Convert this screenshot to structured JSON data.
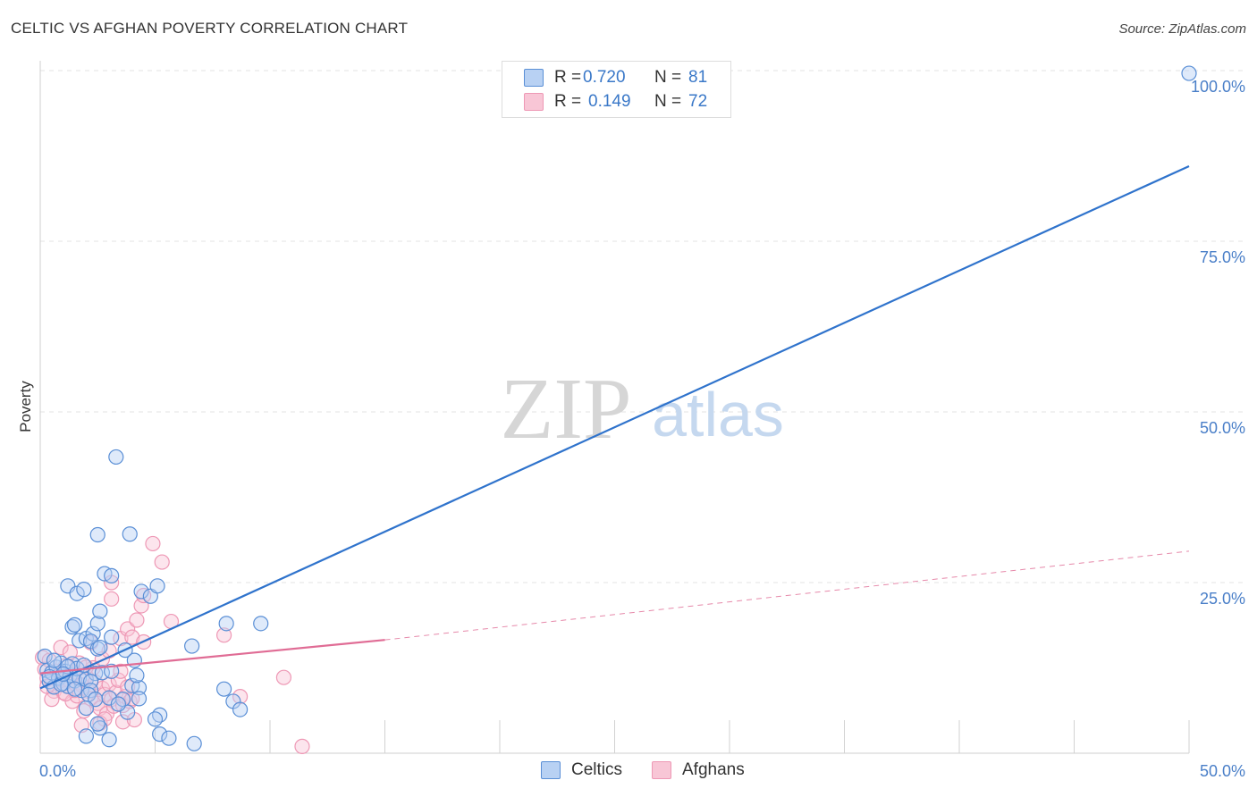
{
  "title": "CELTIC VS AFGHAN POVERTY CORRELATION CHART",
  "source": "Source: ZipAtlas.com",
  "legend": {
    "rows": [
      {
        "r_label": "R =",
        "r_value": "0.720",
        "n_label": "N =",
        "n_value": "81"
      },
      {
        "r_label": "R =",
        "r_value": "0.149",
        "n_label": "N =",
        "n_value": "72"
      }
    ]
  },
  "bottom_legend": {
    "celtics": "Celtics",
    "afghans": "Afghans"
  },
  "colors": {
    "blue": "#2f73cc",
    "blue_fill": "#b8d1f3",
    "blue_stroke": "#5a8fd6",
    "pink": "#e06c95",
    "pink_fill": "#f8c6d6",
    "pink_stroke": "#ee98b5",
    "axis_text": "#4a7fc8",
    "grid": "#e3e3e3"
  },
  "chart_data": {
    "type": "scatter",
    "title": "CELTIC VS AFGHAN POVERTY CORRELATION CHART",
    "xlabel": "",
    "ylabel": "Poverty",
    "xlim": [
      0,
      50
    ],
    "ylim": [
      0,
      100
    ],
    "x_tick_labels": [
      "0.0%",
      "50.0%"
    ],
    "y_tick_labels": [
      "25.0%",
      "50.0%",
      "75.0%",
      "100.0%"
    ],
    "y_ticks": [
      25,
      50,
      75,
      100
    ],
    "watermark": {
      "zip": "ZIP",
      "atlas": "atlas"
    },
    "series": [
      {
        "name": "Celtics",
        "R": 0.72,
        "N": 81,
        "trend": {
          "x": [
            0,
            50
          ],
          "y": [
            9.5,
            86.0
          ],
          "style": "solid"
        },
        "points": [
          [
            0.2,
            14.2
          ],
          [
            0.3,
            12.1
          ],
          [
            0.4,
            10.5
          ],
          [
            0.5,
            11.8
          ],
          [
            0.6,
            9.7
          ],
          [
            0.7,
            12.6
          ],
          [
            0.8,
            11.0
          ],
          [
            0.9,
            13.2
          ],
          [
            1.0,
            10.2
          ],
          [
            1.1,
            12.0
          ],
          [
            1.2,
            9.8
          ],
          [
            1.3,
            11.4
          ],
          [
            1.4,
            13.1
          ],
          [
            1.5,
            10.6
          ],
          [
            1.6,
            12.4
          ],
          [
            1.7,
            11.0
          ],
          [
            1.8,
            9.2
          ],
          [
            1.9,
            12.9
          ],
          [
            2.0,
            10.8
          ],
          [
            0.4,
            11.2
          ],
          [
            0.6,
            13.6
          ],
          [
            0.9,
            10.1
          ],
          [
            1.2,
            12.7
          ],
          [
            1.5,
            9.4
          ],
          [
            1.2,
            24.5
          ],
          [
            1.6,
            23.4
          ],
          [
            1.9,
            24.0
          ],
          [
            1.4,
            18.5
          ],
          [
            1.5,
            18.8
          ],
          [
            1.7,
            16.5
          ],
          [
            2.0,
            16.8
          ],
          [
            2.3,
            17.5
          ],
          [
            2.2,
            16.4
          ],
          [
            2.5,
            19.0
          ],
          [
            2.5,
            15.3
          ],
          [
            2.6,
            15.5
          ],
          [
            2.4,
            11.7
          ],
          [
            2.2,
            10.5
          ],
          [
            2.2,
            9.2
          ],
          [
            2.1,
            8.6
          ],
          [
            2.4,
            7.9
          ],
          [
            2.7,
            11.8
          ],
          [
            2.6,
            20.8
          ],
          [
            2.8,
            26.3
          ],
          [
            3.1,
            26.0
          ],
          [
            2.5,
            32.0
          ],
          [
            3.9,
            32.1
          ],
          [
            3.3,
            43.4
          ],
          [
            3.1,
            17.0
          ],
          [
            3.1,
            12.0
          ],
          [
            3.7,
            15.1
          ],
          [
            4.1,
            13.6
          ],
          [
            4.0,
            9.9
          ],
          [
            4.3,
            9.6
          ],
          [
            3.6,
            7.9
          ],
          [
            4.3,
            8.0
          ],
          [
            3.8,
            6.0
          ],
          [
            4.2,
            11.4
          ],
          [
            4.4,
            23.7
          ],
          [
            4.8,
            23.0
          ],
          [
            5.1,
            24.5
          ],
          [
            5.2,
            5.6
          ],
          [
            5.0,
            5.0
          ],
          [
            5.2,
            2.8
          ],
          [
            5.6,
            2.2
          ],
          [
            6.7,
            1.4
          ],
          [
            6.6,
            15.7
          ],
          [
            2.0,
            2.5
          ],
          [
            3.0,
            2.0
          ],
          [
            2.6,
            3.7
          ],
          [
            2.5,
            4.3
          ],
          [
            2.0,
            6.6
          ],
          [
            8.1,
            19.0
          ],
          [
            8.0,
            9.4
          ],
          [
            8.4,
            7.6
          ],
          [
            8.7,
            6.4
          ],
          [
            9.6,
            19.0
          ],
          [
            3.0,
            8.1
          ],
          [
            3.4,
            7.2
          ],
          [
            1.0,
            11.6
          ],
          [
            50.0,
            99.6
          ]
        ]
      },
      {
        "name": "Afghans",
        "R": 0.149,
        "N": 72,
        "trend": {
          "x": [
            0,
            15
          ],
          "y": [
            11.7,
            16.6
          ],
          "style": "solid",
          "extended_x": [
            15,
            50
          ],
          "extended_y": [
            16.6,
            29.6
          ],
          "extended_style": "dashed"
        },
        "points": [
          [
            0.1,
            14.0
          ],
          [
            0.2,
            12.3
          ],
          [
            0.3,
            11.0
          ],
          [
            0.4,
            13.6
          ],
          [
            0.5,
            10.2
          ],
          [
            0.6,
            9.1
          ],
          [
            0.7,
            12.0
          ],
          [
            0.8,
            10.8
          ],
          [
            0.9,
            11.5
          ],
          [
            1.0,
            8.9
          ],
          [
            1.1,
            12.8
          ],
          [
            1.2,
            9.8
          ],
          [
            1.3,
            10.6
          ],
          [
            1.4,
            7.6
          ],
          [
            1.5,
            11.9
          ],
          [
            1.6,
            8.4
          ],
          [
            1.7,
            13.2
          ],
          [
            1.8,
            10.0
          ],
          [
            1.9,
            6.2
          ],
          [
            2.0,
            11.3
          ],
          [
            2.1,
            9.1
          ],
          [
            2.2,
            8.0
          ],
          [
            2.3,
            12.5
          ],
          [
            2.4,
            10.4
          ],
          [
            2.5,
            7.3
          ],
          [
            2.6,
            6.6
          ],
          [
            2.7,
            9.5
          ],
          [
            2.8,
            8.6
          ],
          [
            2.9,
            5.8
          ],
          [
            3.0,
            10.1
          ],
          [
            3.1,
            7.9
          ],
          [
            3.2,
            6.9
          ],
          [
            3.3,
            8.9
          ],
          [
            3.4,
            10.7
          ],
          [
            3.5,
            12.0
          ],
          [
            3.6,
            7.0
          ],
          [
            3.7,
            8.3
          ],
          [
            3.8,
            9.7
          ],
          [
            3.9,
            7.6
          ],
          [
            4.0,
            8.0
          ],
          [
            0.9,
            15.5
          ],
          [
            1.3,
            14.8
          ],
          [
            2.2,
            16.2
          ],
          [
            2.7,
            13.8
          ],
          [
            3.0,
            15.0
          ],
          [
            3.5,
            16.8
          ],
          [
            3.8,
            18.2
          ],
          [
            4.0,
            17.0
          ],
          [
            4.2,
            19.5
          ],
          [
            4.5,
            16.3
          ],
          [
            4.4,
            21.6
          ],
          [
            4.5,
            23.1
          ],
          [
            3.1,
            22.6
          ],
          [
            3.1,
            25.0
          ],
          [
            5.3,
            28.0
          ],
          [
            4.9,
            30.7
          ],
          [
            5.7,
            19.3
          ],
          [
            8.0,
            17.3
          ],
          [
            10.6,
            11.1
          ],
          [
            8.7,
            8.3
          ],
          [
            11.4,
            1.0
          ],
          [
            2.6,
            4.4
          ],
          [
            1.8,
            4.1
          ],
          [
            2.8,
            5.0
          ],
          [
            3.6,
            4.6
          ],
          [
            4.1,
            4.9
          ],
          [
            0.3,
            9.8
          ],
          [
            0.5,
            7.9
          ],
          [
            0.8,
            11.3
          ],
          [
            1.5,
            9.2
          ],
          [
            2.0,
            12.6
          ],
          [
            1.1,
            8.7
          ]
        ]
      }
    ]
  }
}
